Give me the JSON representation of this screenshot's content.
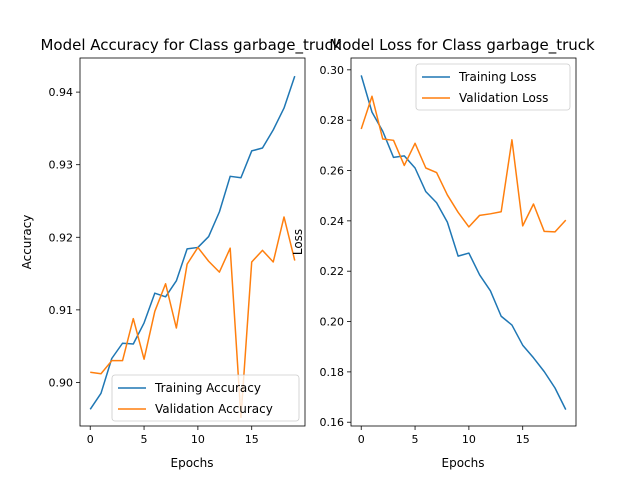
{
  "colors": {
    "training": "#1f77b4",
    "validation": "#ff7f0e"
  },
  "chart_data": [
    {
      "type": "line",
      "title": "Model Accuracy for Class garbage_truck",
      "xlabel": "Epochs",
      "ylabel": "Accuracy",
      "x": [
        0,
        1,
        2,
        3,
        4,
        5,
        6,
        7,
        8,
        9,
        10,
        11,
        12,
        13,
        14,
        15,
        16,
        17,
        18,
        19
      ],
      "xlim": [
        -0.95,
        19.95
      ],
      "ylim": [
        0.894,
        0.9447
      ],
      "xticks": [
        0,
        5,
        10,
        15
      ],
      "yticks": [
        0.9,
        0.91,
        0.92,
        0.93,
        0.94
      ],
      "ytick_labels": [
        "0.90",
        "0.91",
        "0.92",
        "0.93",
        "0.94"
      ],
      "grid": false,
      "legend": "lower-right",
      "series": [
        {
          "name": "Training Accuracy",
          "color": "#1f77b4",
          "values": [
            0.8963,
            0.8985,
            0.9033,
            0.9054,
            0.9053,
            0.9082,
            0.9123,
            0.9118,
            0.914,
            0.9184,
            0.9186,
            0.9201,
            0.9235,
            0.9284,
            0.9282,
            0.9319,
            0.9323,
            0.9348,
            0.9378,
            0.9422
          ]
        },
        {
          "name": "Validation Accuracy",
          "color": "#ff7f0e",
          "values": [
            0.9014,
            0.9012,
            0.903,
            0.903,
            0.9088,
            0.9032,
            0.9098,
            0.9136,
            0.9075,
            0.9163,
            0.9186,
            0.9167,
            0.9152,
            0.9185,
            0.8952,
            0.9166,
            0.9182,
            0.9166,
            0.9228,
            0.9168
          ]
        }
      ]
    },
    {
      "type": "line",
      "title": "Model Loss for Class garbage_truck",
      "xlabel": "Epochs",
      "ylabel": "Loss",
      "x": [
        0,
        1,
        2,
        3,
        4,
        5,
        6,
        7,
        8,
        9,
        10,
        11,
        12,
        13,
        14,
        15,
        16,
        17,
        18,
        19
      ],
      "xlim": [
        -0.95,
        19.95
      ],
      "ylim": [
        0.1585,
        0.3047
      ],
      "xticks": [
        0,
        5,
        10,
        15
      ],
      "yticks": [
        0.16,
        0.18,
        0.2,
        0.22,
        0.24,
        0.26,
        0.28,
        0.3
      ],
      "ytick_labels": [
        "0.16",
        "0.18",
        "0.20",
        "0.22",
        "0.24",
        "0.26",
        "0.28",
        "0.30"
      ],
      "grid": false,
      "legend": "upper-right",
      "series": [
        {
          "name": "Training Loss",
          "color": "#1f77b4",
          "values": [
            0.2978,
            0.2832,
            0.2756,
            0.2652,
            0.2658,
            0.261,
            0.2516,
            0.2472,
            0.2395,
            0.226,
            0.2272,
            0.2185,
            0.2122,
            0.2021,
            0.1986,
            0.1906,
            0.1856,
            0.1801,
            0.1736,
            0.165
          ]
        },
        {
          "name": "Validation Loss",
          "color": "#ff7f0e",
          "values": [
            0.2765,
            0.2895,
            0.2725,
            0.272,
            0.262,
            0.2708,
            0.261,
            0.2592,
            0.2503,
            0.2434,
            0.2376,
            0.2422,
            0.2428,
            0.2436,
            0.2722,
            0.238,
            0.2467,
            0.2358,
            0.2356,
            0.2403
          ]
        }
      ]
    }
  ]
}
